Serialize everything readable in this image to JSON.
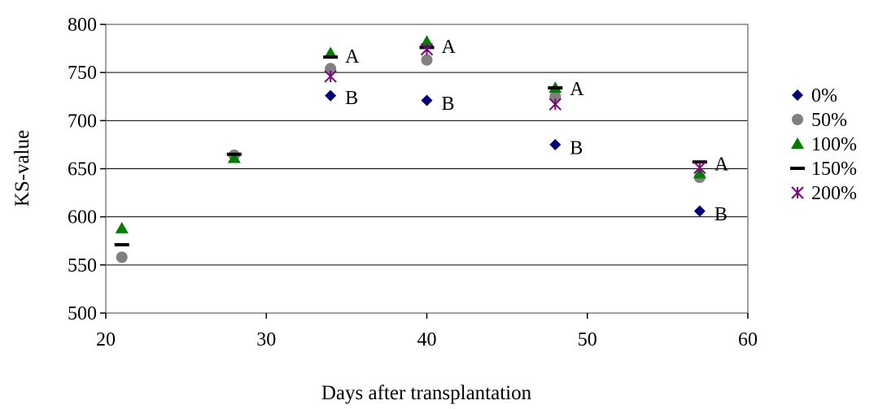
{
  "chart_data": {
    "type": "scatter",
    "title": "",
    "xlabel": "Days after transplantation",
    "ylabel": "KS-value",
    "xlim": [
      20,
      60
    ],
    "ylim": [
      500,
      800
    ],
    "xticks": [
      20,
      30,
      40,
      50,
      60
    ],
    "yticks": [
      500,
      550,
      600,
      650,
      700,
      750,
      800
    ],
    "xtick_labels": [
      "20",
      "30",
      "40",
      "50",
      "60"
    ],
    "ytick_labels": [
      "500",
      "550",
      "600",
      "650",
      "700",
      "750",
      "800"
    ],
    "grid": "horizontal",
    "legend_position": "right",
    "series": [
      {
        "name": "0%",
        "marker": "diamond",
        "color": "#000080",
        "points": [
          [
            34,
            726
          ],
          [
            40,
            721
          ],
          [
            48,
            675
          ],
          [
            57,
            606
          ]
        ]
      },
      {
        "name": "50%",
        "marker": "circle",
        "color": "#808080",
        "points": [
          [
            21,
            558
          ],
          [
            28,
            664
          ],
          [
            34,
            754
          ],
          [
            40,
            763
          ],
          [
            48,
            725
          ],
          [
            57,
            641
          ]
        ]
      },
      {
        "name": "100%",
        "marker": "triangle",
        "color": "#008000",
        "points": [
          [
            21,
            588
          ],
          [
            28,
            661
          ],
          [
            34,
            770
          ],
          [
            40,
            782
          ],
          [
            48,
            734
          ],
          [
            57,
            645
          ]
        ]
      },
      {
        "name": "150%",
        "marker": "dash",
        "color": "#000000",
        "points": [
          [
            21,
            571
          ],
          [
            28,
            665
          ],
          [
            34,
            766
          ],
          [
            40,
            776
          ],
          [
            48,
            734
          ],
          [
            57,
            657
          ]
        ]
      },
      {
        "name": "200%",
        "marker": "asterisk",
        "color": "#800080",
        "points": [
          [
            34,
            746
          ],
          [
            40,
            774
          ],
          [
            48,
            717
          ],
          [
            57,
            651
          ]
        ]
      }
    ],
    "annotations": [
      {
        "x": 34,
        "y": 768,
        "text": "A"
      },
      {
        "x": 34,
        "y": 725,
        "text": "B"
      },
      {
        "x": 40,
        "y": 778,
        "text": "A"
      },
      {
        "x": 40,
        "y": 719,
        "text": "B"
      },
      {
        "x": 48,
        "y": 734,
        "text": "A"
      },
      {
        "x": 48,
        "y": 673,
        "text": "B"
      },
      {
        "x": 57,
        "y": 656,
        "text": "A"
      },
      {
        "x": 57,
        "y": 604,
        "text": "B"
      }
    ]
  }
}
